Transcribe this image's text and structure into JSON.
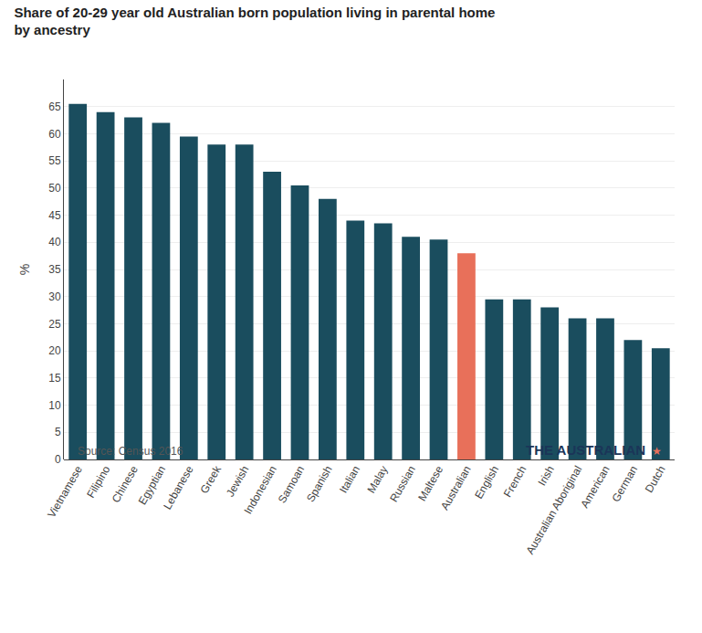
{
  "chart_data": {
    "type": "bar",
    "title": "Share of 20-29 year old Australian born population living in parental home",
    "subtitle": "by ancestry",
    "categories": [
      "Vietnamese",
      "Filipino",
      "Chinese",
      "Egyptian",
      "Lebanese",
      "Greek",
      "Jewish",
      "Indonesian",
      "Samoan",
      "Spanish",
      "Italian",
      "Malay",
      "Russian",
      "Maltese",
      "Australian",
      "English",
      "French",
      "Irish",
      "Australian Aboriginal",
      "American",
      "German",
      "Dutch"
    ],
    "values": [
      65.5,
      64.0,
      63.0,
      62.0,
      59.5,
      58.0,
      58.0,
      53.0,
      50.5,
      48.0,
      44.0,
      43.5,
      41.0,
      40.5,
      38.0,
      29.5,
      29.5,
      28.0,
      26.0,
      26.0,
      22.0,
      20.5
    ],
    "colors": [
      "#1a4d5e",
      "#1a4d5e",
      "#1a4d5e",
      "#1a4d5e",
      "#1a4d5e",
      "#1a4d5e",
      "#1a4d5e",
      "#1a4d5e",
      "#1a4d5e",
      "#1a4d5e",
      "#1a4d5e",
      "#1a4d5e",
      "#1a4d5e",
      "#1a4d5e",
      "#e8705a",
      "#1a4d5e",
      "#1a4d5e",
      "#1a4d5e",
      "#1a4d5e",
      "#1a4d5e",
      "#1a4d5e",
      "#1a4d5e"
    ],
    "ylabel": "%",
    "ylim": [
      0,
      70
    ],
    "yticks": [
      0,
      5,
      10,
      15,
      20,
      25,
      30,
      35,
      40,
      45,
      50,
      55,
      60,
      65
    ],
    "grid": true,
    "annotations": [
      {
        "text": "Source: Census 2016",
        "color": "#555555"
      },
      {
        "text": "THE AUSTRALIAN",
        "color": "#1a3558"
      },
      {
        "text": "★",
        "color": "#e8705a"
      }
    ]
  }
}
